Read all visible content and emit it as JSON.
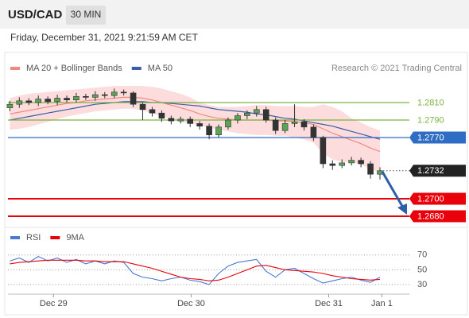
{
  "header": {
    "symbol": "USD/CAD",
    "timeframe": "30 MIN",
    "datetime": "Friday, December 31, 2021 9:21:59 AM CET"
  },
  "chart_data": [
    {
      "type": "candlestick",
      "source": "Research © 2021 Trading Central",
      "up_color": "#5aa454",
      "down_color": "#333333",
      "x": [
        0,
        1,
        2,
        3,
        4,
        5,
        6,
        7,
        8,
        9,
        10,
        11,
        12,
        13,
        14,
        15,
        16,
        17,
        18,
        19,
        20,
        21,
        22,
        23,
        24,
        25,
        26,
        27,
        28,
        29,
        30,
        31,
        32,
        33,
        34,
        35,
        36,
        37,
        38,
        39
      ],
      "open": [
        1.2804,
        1.2808,
        1.2812,
        1.281,
        1.2814,
        1.2811,
        1.2815,
        1.2813,
        1.2817,
        1.2816,
        1.2819,
        1.2818,
        1.2822,
        1.2821,
        1.2808,
        1.2802,
        1.2798,
        1.2792,
        1.2789,
        1.2791,
        1.2786,
        1.2783,
        1.2773,
        1.2782,
        1.279,
        1.2795,
        1.2798,
        1.2802,
        1.279,
        1.2778,
        1.2786,
        1.2788,
        1.2782,
        1.277,
        1.274,
        1.2738,
        1.2741,
        1.2744,
        1.274,
        1.2728
      ],
      "high": [
        1.2812,
        1.2816,
        1.2815,
        1.2818,
        1.2817,
        1.2819,
        1.2818,
        1.2821,
        1.282,
        1.2823,
        1.2822,
        1.2826,
        1.2825,
        1.2823,
        1.281,
        1.2805,
        1.2801,
        1.2795,
        1.2794,
        1.2794,
        1.2789,
        1.2786,
        1.2785,
        1.2793,
        1.2798,
        1.2801,
        1.2806,
        1.2805,
        1.2793,
        1.279,
        1.2808,
        1.2791,
        1.2785,
        1.2772,
        1.2744,
        1.2745,
        1.2748,
        1.2747,
        1.2743,
        1.2736
      ],
      "low": [
        1.28,
        1.2804,
        1.2807,
        1.2806,
        1.2808,
        1.2807,
        1.281,
        1.281,
        1.2813,
        1.2812,
        1.2815,
        1.2815,
        1.2818,
        1.2805,
        1.279,
        1.2794,
        1.2788,
        1.2785,
        1.2786,
        1.2782,
        1.2779,
        1.2768,
        1.277,
        1.2779,
        1.2786,
        1.2791,
        1.2794,
        1.2787,
        1.2774,
        1.2775,
        1.2782,
        1.2778,
        1.2766,
        1.2735,
        1.2733,
        1.2735,
        1.2738,
        1.2736,
        1.2723,
        1.2722
      ],
      "close": [
        1.2808,
        1.2812,
        1.281,
        1.2814,
        1.2811,
        1.2815,
        1.2813,
        1.2817,
        1.2816,
        1.2819,
        1.2818,
        1.2822,
        1.2821,
        1.2808,
        1.2802,
        1.2798,
        1.2792,
        1.2789,
        1.2791,
        1.2786,
        1.2783,
        1.2773,
        1.2782,
        1.279,
        1.2795,
        1.2798,
        1.2802,
        1.279,
        1.2778,
        1.2786,
        1.2788,
        1.2782,
        1.277,
        1.274,
        1.2738,
        1.2741,
        1.2744,
        1.274,
        1.2728,
        1.2732
      ],
      "series": [
        {
          "name": "MA 20 + Bollinger Bands",
          "color": "#f08a80",
          "band_color": "#fcdcdc",
          "values": [
            1.2797,
            1.2799,
            1.2801,
            1.2803,
            1.2805,
            1.2807,
            1.2809,
            1.281,
            1.2812,
            1.2813,
            1.2814,
            1.2815,
            1.2816,
            1.2816,
            1.2815,
            1.2813,
            1.281,
            1.2807,
            1.2804,
            1.2801,
            1.2797,
            1.2794,
            1.2792,
            1.2791,
            1.279,
            1.279,
            1.279,
            1.279,
            1.2789,
            1.2789,
            1.2788,
            1.2787,
            1.2785,
            1.278,
            1.2775,
            1.2771,
            1.2767,
            1.2763,
            1.2758,
            1.2754
          ],
          "upper": [
            1.2815,
            1.2818,
            1.282,
            1.2821,
            1.2822,
            1.2823,
            1.2824,
            1.2825,
            1.2826,
            1.2827,
            1.2828,
            1.2829,
            1.2829,
            1.2829,
            1.2829,
            1.2828,
            1.2826,
            1.2823,
            1.282,
            1.2816,
            1.281,
            1.2807,
            1.2805,
            1.2805,
            1.2805,
            1.2806,
            1.2807,
            1.2807,
            1.2806,
            1.2806,
            1.2806,
            1.2805,
            1.2805,
            1.2808,
            1.2805,
            1.28,
            1.2792,
            1.2787,
            1.2782,
            1.2778
          ],
          "lower": [
            1.2779,
            1.278,
            1.2782,
            1.2785,
            1.2788,
            1.2791,
            1.2794,
            1.2796,
            1.2798,
            1.28,
            1.2801,
            1.2802,
            1.2803,
            1.2803,
            1.2801,
            1.2798,
            1.2794,
            1.2791,
            1.2788,
            1.2786,
            1.2784,
            1.2781,
            1.2779,
            1.2777,
            1.2775,
            1.2774,
            1.2773,
            1.2773,
            1.2772,
            1.2772,
            1.277,
            1.2768,
            1.2764,
            1.2752,
            1.2745,
            1.2742,
            1.2742,
            1.2739,
            1.2734,
            1.273
          ]
        },
        {
          "name": "MA 50",
          "color": "#3a5ea8",
          "values": [
            1.279,
            1.2792,
            1.2794,
            1.2796,
            1.2798,
            1.28,
            1.2802,
            1.2804,
            1.2806,
            1.2808,
            1.2809,
            1.281,
            1.2811,
            1.2811,
            1.2811,
            1.281,
            1.281,
            1.2809,
            1.2808,
            1.2807,
            1.2806,
            1.2804,
            1.2802,
            1.2801,
            1.28,
            1.2799,
            1.2797,
            1.2796,
            1.2794,
            1.2792,
            1.2791,
            1.2789,
            1.2787,
            1.2785,
            1.2783,
            1.278,
            1.2777,
            1.2774,
            1.2771,
            1.2768
          ]
        }
      ],
      "levels": [
        {
          "value": 1.281,
          "label": "1.2810",
          "color": "#7cb342",
          "style": "text"
        },
        {
          "value": 1.279,
          "label": "1.2790",
          "color": "#7cb342",
          "style": "text"
        },
        {
          "value": 1.277,
          "label": "1.2770",
          "color": "#2f6cc4",
          "style": "box"
        },
        {
          "value": 1.2732,
          "label": "1.2732",
          "color": "#222222",
          "style": "dotted"
        },
        {
          "value": 1.27,
          "label": "1.2700",
          "color": "#e8000b",
          "style": "box"
        },
        {
          "value": 1.268,
          "label": "1.2680",
          "color": "#e8000b",
          "style": "box"
        }
      ],
      "xlim": [
        -0.2,
        42.1
      ],
      "ylim": [
        1.2665,
        1.283
      ]
    },
    {
      "type": "line",
      "x": [
        0,
        1,
        2,
        3,
        4,
        5,
        6,
        7,
        8,
        9,
        10,
        11,
        12,
        13,
        14,
        15,
        16,
        17,
        18,
        19,
        20,
        21,
        22,
        23,
        24,
        25,
        26,
        27,
        28,
        29,
        30,
        31,
        32,
        33,
        34,
        35,
        36,
        37,
        38,
        39
      ],
      "series": [
        {
          "name": "RSI",
          "color": "#4a78d0",
          "values": [
            62,
            66,
            60,
            68,
            62,
            66,
            60,
            64,
            58,
            62,
            58,
            62,
            60,
            45,
            40,
            38,
            35,
            38,
            40,
            36,
            34,
            30,
            45,
            55,
            60,
            62,
            64,
            48,
            40,
            50,
            52,
            45,
            38,
            32,
            35,
            38,
            40,
            36,
            33,
            40
          ]
        },
        {
          "name": "9MA",
          "color": "#e8000b",
          "values": [
            58,
            60,
            61,
            62,
            63,
            63,
            63,
            63,
            62,
            62,
            61,
            61,
            61,
            58,
            55,
            52,
            48,
            44,
            40,
            38,
            37,
            35,
            36,
            40,
            45,
            50,
            55,
            56,
            53,
            50,
            49,
            48,
            47,
            45,
            42,
            40,
            38,
            37,
            36,
            37
          ]
        }
      ],
      "xlim": [
        -0.2,
        42.1
      ],
      "ylim": [
        17,
        87
      ],
      "yticks": [
        30,
        50,
        70
      ],
      "xticks": [
        {
          "value": 4.6,
          "label": "Dec 29"
        },
        {
          "value": 19.1,
          "label": "Dec 30"
        },
        {
          "value": 33.6,
          "label": "Dec 31"
        },
        {
          "value": 39.2,
          "label": "Jan 1"
        }
      ]
    }
  ]
}
